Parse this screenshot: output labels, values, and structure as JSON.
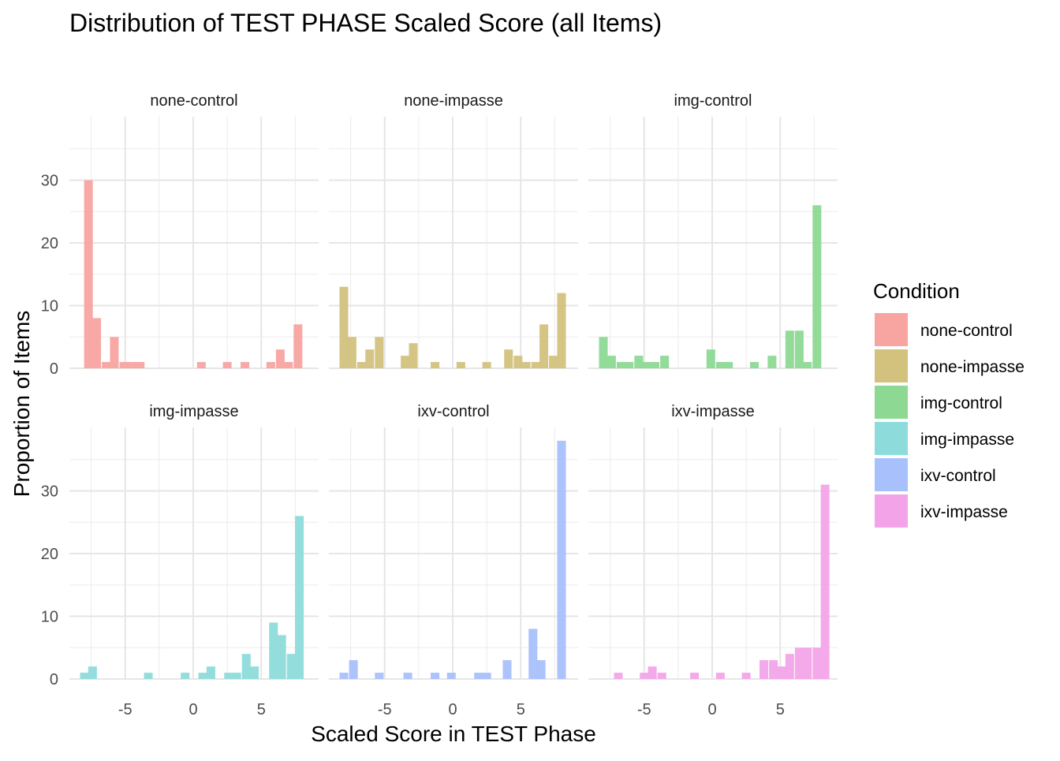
{
  "chart_data": {
    "type": "bar",
    "subtype": "faceted-histogram",
    "title": "Distribution of TEST PHASE Scaled Score (all Items)",
    "xlabel": "Scaled Score in TEST Phase",
    "ylabel": "Proportion of Items",
    "xlim": [
      -8.5,
      8.5
    ],
    "ylim": [
      0,
      38
    ],
    "x_ticks": [
      -5,
      0,
      5
    ],
    "y_ticks": [
      0,
      10,
      20,
      30
    ],
    "x_tick_labels": [
      "-5",
      "0",
      "5"
    ],
    "y_tick_labels": [
      "0",
      "10",
      "20",
      "30"
    ],
    "grid": true,
    "facet_layout": "2 rows x 3 columns",
    "bin_width": 0.64,
    "legend": {
      "title": "Condition",
      "position": "right",
      "items": [
        {
          "label": "none-control",
          "color": "#f8a4a0"
        },
        {
          "label": "none-impasse",
          "color": "#d3c27e"
        },
        {
          "label": "img-control",
          "color": "#8dd994"
        },
        {
          "label": "img-impasse",
          "color": "#8ddcdb"
        },
        {
          "label": "ixv-control",
          "color": "#a8c0fc"
        },
        {
          "label": "ixv-impasse",
          "color": "#f3a4e9"
        }
      ]
    },
    "panels": [
      {
        "name": "none-control",
        "color": "#f8a4a0",
        "bins": [
          {
            "x": -7.7,
            "y": 30
          },
          {
            "x": -7.1,
            "y": 8
          },
          {
            "x": -6.4,
            "y": 1
          },
          {
            "x": -5.8,
            "y": 5
          },
          {
            "x": -5.1,
            "y": 1
          },
          {
            "x": -4.5,
            "y": 1
          },
          {
            "x": -3.9,
            "y": 1
          },
          {
            "x": 0.6,
            "y": 1
          },
          {
            "x": 2.5,
            "y": 1
          },
          {
            "x": 3.8,
            "y": 1
          },
          {
            "x": 5.7,
            "y": 1
          },
          {
            "x": 6.4,
            "y": 3
          },
          {
            "x": 7.0,
            "y": 1
          },
          {
            "x": 7.7,
            "y": 7
          }
        ]
      },
      {
        "name": "none-impasse",
        "color": "#d3c27e",
        "bins": [
          {
            "x": -8.0,
            "y": 13
          },
          {
            "x": -7.4,
            "y": 5
          },
          {
            "x": -6.7,
            "y": 1
          },
          {
            "x": -6.1,
            "y": 3
          },
          {
            "x": -5.4,
            "y": 5
          },
          {
            "x": -3.5,
            "y": 2
          },
          {
            "x": -2.9,
            "y": 4
          },
          {
            "x": -1.3,
            "y": 1
          },
          {
            "x": 0.6,
            "y": 1
          },
          {
            "x": 2.5,
            "y": 1
          },
          {
            "x": 4.1,
            "y": 3
          },
          {
            "x": 4.8,
            "y": 2
          },
          {
            "x": 5.4,
            "y": 1
          },
          {
            "x": 6.1,
            "y": 1
          },
          {
            "x": 6.7,
            "y": 7
          },
          {
            "x": 7.4,
            "y": 2
          },
          {
            "x": 8.0,
            "y": 12
          }
        ]
      },
      {
        "name": "img-control",
        "color": "#8dd994",
        "bins": [
          {
            "x": -8.0,
            "y": 5
          },
          {
            "x": -7.4,
            "y": 2
          },
          {
            "x": -6.7,
            "y": 1
          },
          {
            "x": -6.1,
            "y": 1
          },
          {
            "x": -5.4,
            "y": 2
          },
          {
            "x": -4.8,
            "y": 1
          },
          {
            "x": -4.2,
            "y": 1
          },
          {
            "x": -3.5,
            "y": 2
          },
          {
            "x": -0.1,
            "y": 3
          },
          {
            "x": 0.6,
            "y": 1
          },
          {
            "x": 1.2,
            "y": 1
          },
          {
            "x": 3.1,
            "y": 1
          },
          {
            "x": 4.4,
            "y": 2
          },
          {
            "x": 5.7,
            "y": 6
          },
          {
            "x": 6.4,
            "y": 6
          },
          {
            "x": 7.0,
            "y": 1
          },
          {
            "x": 7.7,
            "y": 26
          }
        ]
      },
      {
        "name": "img-impasse",
        "color": "#8ddcdb",
        "bins": [
          {
            "x": -8.0,
            "y": 1
          },
          {
            "x": -7.4,
            "y": 2
          },
          {
            "x": -3.3,
            "y": 1
          },
          {
            "x": -0.6,
            "y": 1
          },
          {
            "x": 0.7,
            "y": 1
          },
          {
            "x": 1.3,
            "y": 2
          },
          {
            "x": 2.6,
            "y": 1
          },
          {
            "x": 3.2,
            "y": 1
          },
          {
            "x": 3.9,
            "y": 4
          },
          {
            "x": 4.5,
            "y": 2
          },
          {
            "x": 5.9,
            "y": 9
          },
          {
            "x": 6.5,
            "y": 7
          },
          {
            "x": 7.2,
            "y": 4
          },
          {
            "x": 7.8,
            "y": 26
          }
        ]
      },
      {
        "name": "ixv-control",
        "color": "#a8c0fc",
        "bins": [
          {
            "x": -8.0,
            "y": 1
          },
          {
            "x": -7.3,
            "y": 3
          },
          {
            "x": -5.4,
            "y": 1
          },
          {
            "x": -3.3,
            "y": 1
          },
          {
            "x": -1.3,
            "y": 1
          },
          {
            "x": -0.1,
            "y": 1
          },
          {
            "x": 1.9,
            "y": 1
          },
          {
            "x": 2.5,
            "y": 1
          },
          {
            "x": 4.0,
            "y": 3
          },
          {
            "x": 5.9,
            "y": 8
          },
          {
            "x": 6.5,
            "y": 3
          },
          {
            "x": 8.0,
            "y": 38
          }
        ]
      },
      {
        "name": "ixv-impasse",
        "color": "#f3a4e9",
        "bins": [
          {
            "x": -6.9,
            "y": 1
          },
          {
            "x": -5.0,
            "y": 1
          },
          {
            "x": -4.4,
            "y": 2
          },
          {
            "x": -3.7,
            "y": 1
          },
          {
            "x": -1.3,
            "y": 1
          },
          {
            "x": 0.6,
            "y": 1
          },
          {
            "x": 2.5,
            "y": 1
          },
          {
            "x": 3.8,
            "y": 3
          },
          {
            "x": 4.5,
            "y": 3
          },
          {
            "x": 5.1,
            "y": 2
          },
          {
            "x": 5.7,
            "y": 4
          },
          {
            "x": 6.4,
            "y": 5
          },
          {
            "x": 7.0,
            "y": 5
          },
          {
            "x": 7.7,
            "y": 5
          },
          {
            "x": 8.3,
            "y": 31
          }
        ]
      }
    ]
  }
}
